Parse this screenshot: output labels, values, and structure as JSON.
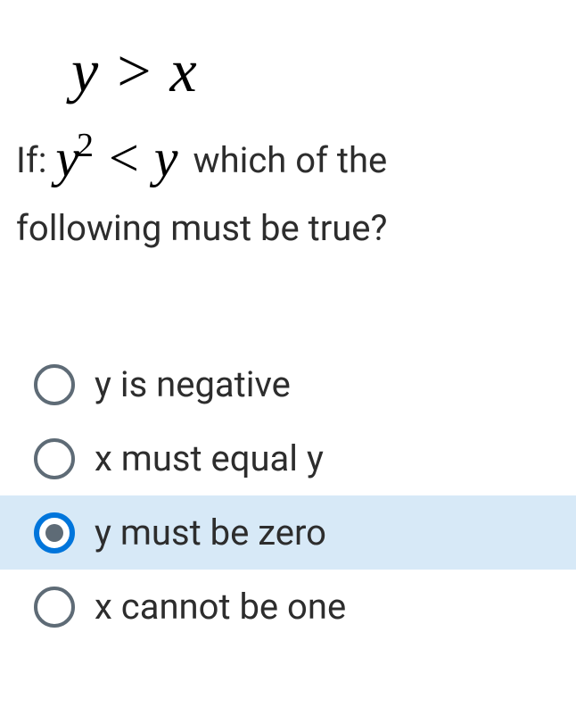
{
  "inequality_top": {
    "var_y": "y",
    "gt": ">",
    "var_x": "x"
  },
  "question": {
    "if_label": "If:",
    "math_var_y": "y",
    "math_exp": "2",
    "lt": "<",
    "math_var_y2": "y",
    "text_part1": "which of the",
    "text_part2": "following must be true?"
  },
  "options": [
    {
      "label": "y is negative",
      "selected": false
    },
    {
      "label": "x must equal y",
      "selected": false
    },
    {
      "label": "y must be zero",
      "selected": true
    },
    {
      "label": "x cannot be one",
      "selected": false
    }
  ],
  "colors": {
    "selected_bg": "#d7e9f7",
    "radio_border": "#5e6b76",
    "radio_selected_border": "#0075db",
    "text": "#2d2d2d"
  }
}
